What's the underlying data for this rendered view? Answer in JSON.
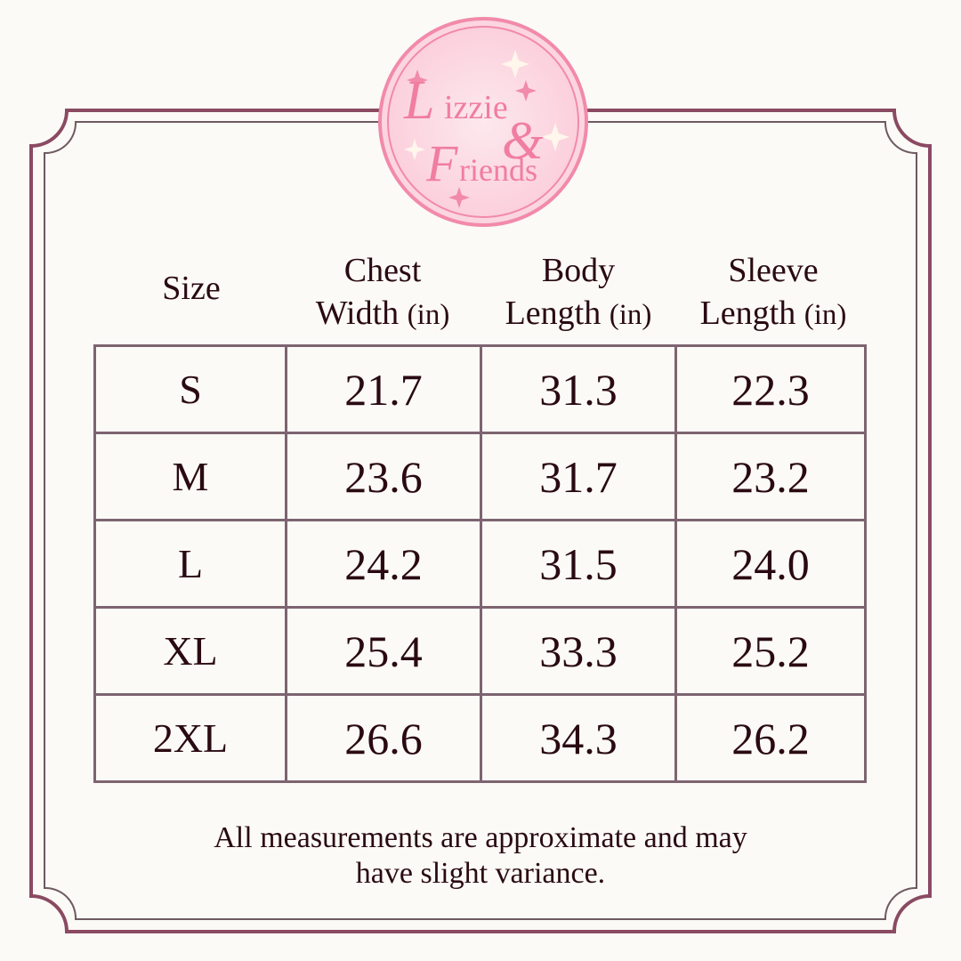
{
  "brand": {
    "logo_text": "Lizzie & Friends",
    "colors": {
      "pink": "#f28aaa",
      "pink_light": "#fddde6",
      "frame": "#8a4a62"
    }
  },
  "headers": {
    "size": "Size",
    "chest": {
      "line1": "Chest",
      "line2": "Width",
      "unit": "(in)"
    },
    "body": {
      "line1": "Body",
      "line2": "Length",
      "unit": "(in)"
    },
    "sleeve": {
      "line1": "Sleeve",
      "line2": "Length",
      "unit": "(in)"
    }
  },
  "rows": [
    [
      "S",
      "21.7",
      "31.3",
      "22.3"
    ],
    [
      "M",
      "23.6",
      "31.7",
      "23.2"
    ],
    [
      "L",
      "24.2",
      "31.5",
      "24.0"
    ],
    [
      "XL",
      "25.4",
      "33.3",
      "25.2"
    ],
    [
      "2XL",
      "26.6",
      "34.3",
      "26.2"
    ]
  ],
  "note": {
    "line1": "All measurements are approximate and may",
    "line2": "have slight variance."
  }
}
